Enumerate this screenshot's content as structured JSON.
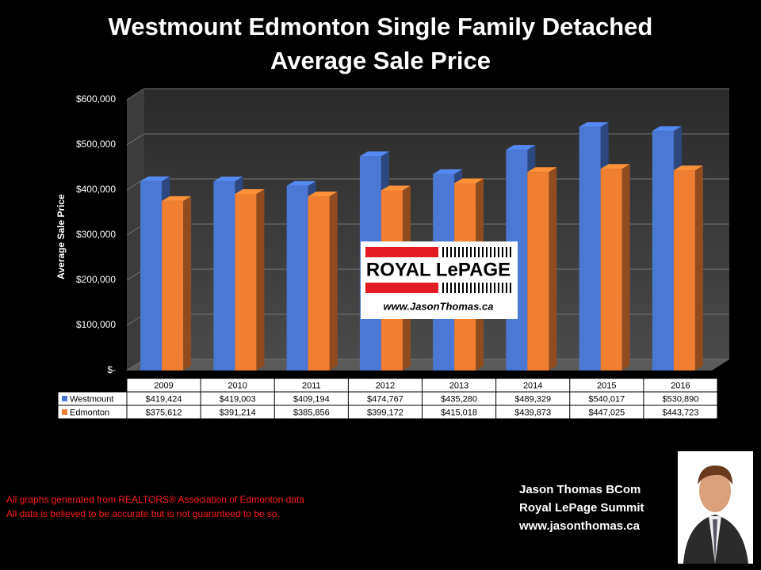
{
  "chart_data": {
    "type": "bar",
    "title": [
      "Westmount Edmonton Single Family Detached",
      "Average Sale Price"
    ],
    "y_label": "Average Sale Price",
    "categories": [
      "2009",
      "2010",
      "2011",
      "2012",
      "2013",
      "2014",
      "2015",
      "2016"
    ],
    "series": [
      {
        "name": "Westmount",
        "color": "#4a78d4",
        "values": [
          419424,
          419003,
          409194,
          474767,
          435280,
          489329,
          540017,
          530890
        ],
        "value_labels": [
          "$419,424",
          "$419,003",
          "$409,194",
          "$474,767",
          "$435,280",
          "$489,329",
          "$540,017",
          "$530,890"
        ]
      },
      {
        "name": "Edmonton",
        "color": "#f07f32",
        "values": [
          375612,
          391214,
          385856,
          399172,
          415018,
          439873,
          447025,
          443723
        ],
        "value_labels": [
          "$375,612",
          "$391,214",
          "$385,856",
          "$399,172",
          "$415,018",
          "$439,873",
          "$447,025",
          "$443,723"
        ]
      }
    ],
    "ylim": [
      0,
      600000
    ],
    "yticks": [
      {
        "value": 0,
        "label": "$-"
      },
      {
        "value": 100000,
        "label": "$100,000"
      },
      {
        "value": 200000,
        "label": "$200,000"
      },
      {
        "value": 300000,
        "label": "$300,000"
      },
      {
        "value": 400000,
        "label": "$400,000"
      },
      {
        "value": 500000,
        "label": "$500,000"
      },
      {
        "value": 600000,
        "label": "$600,000"
      }
    ],
    "grid": true,
    "logo": {
      "brand": "ROYAL LePAGE",
      "url": "www.JasonThomas.ca"
    },
    "notes": [
      "All graphs generated from REALTORS® Association of Edmonton data",
      "All data is believed to be accurate but is not guaranteed to be so."
    ],
    "contact": [
      "Jason Thomas BCom",
      "Royal LePage Summit",
      "www.jasonthomas.ca"
    ]
  }
}
